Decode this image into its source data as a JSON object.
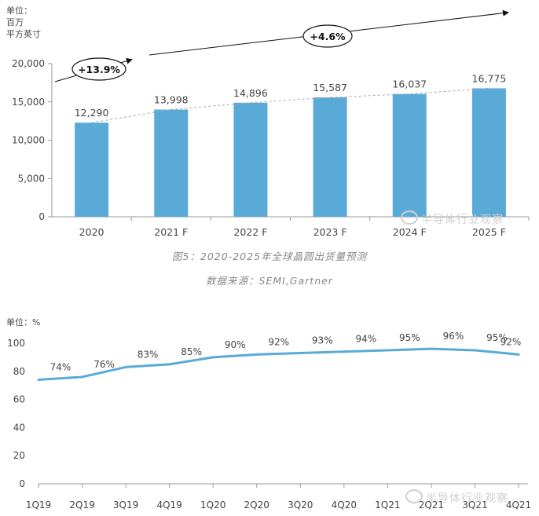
{
  "chart_data": [
    {
      "type": "bar",
      "unit_label": [
        "单位：",
        "百万",
        "平方英寸"
      ],
      "categories": [
        "2020",
        "2021 F",
        "2022 F",
        "2023 F",
        "2024 F",
        "2025 F"
      ],
      "values": [
        12290,
        13998,
        14896,
        15587,
        16037,
        16775
      ],
      "value_labels": [
        "12,290",
        "13,998",
        "14,896",
        "15,587",
        "16,037",
        "16,775"
      ],
      "ylim": [
        0,
        20000
      ],
      "yticks": [
        0,
        5000,
        10000,
        15000,
        20000
      ],
      "ytick_labels": [
        "0",
        "5,000",
        "10,000",
        "15,000",
        "20,000"
      ],
      "annotations": [
        "+13.9%",
        "+4.6%"
      ],
      "bar_color": "#5aaad8",
      "caption": "图5：2020-2025年全球晶圆出货量预测",
      "source": "数据来源：SEMI,Gartner",
      "grid": false
    },
    {
      "type": "line",
      "unit_label": "单位：%",
      "categories": [
        "1Q19",
        "2Q19",
        "3Q19",
        "4Q19",
        "1Q20",
        "2Q20",
        "3Q20",
        "4Q20",
        "1Q21",
        "2Q21",
        "3Q21",
        "4Q21"
      ],
      "values": [
        74,
        76,
        83,
        85,
        90,
        92,
        93,
        94,
        95,
        96,
        95,
        92
      ],
      "value_labels": [
        "74%",
        "76%",
        "83%",
        "85%",
        "90%",
        "92%",
        "93%",
        "94%",
        "95%",
        "96%",
        "95%",
        "92%"
      ],
      "ylim": [
        0,
        100
      ],
      "yticks": [
        0,
        20,
        40,
        60,
        80,
        100
      ],
      "ytick_labels": [
        "0",
        "20",
        "40",
        "60",
        "80",
        "100"
      ],
      "line_color": "#5aaad8",
      "grid": false
    }
  ],
  "watermark": "半导体行业观察"
}
